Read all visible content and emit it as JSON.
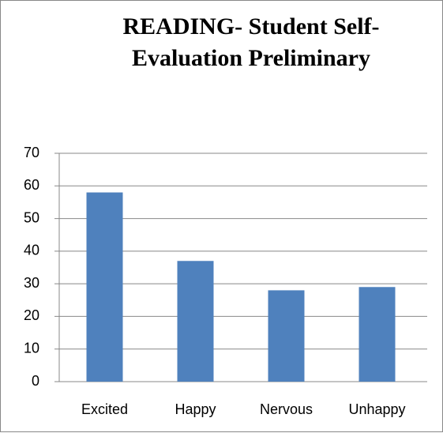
{
  "chart_data": {
    "type": "bar",
    "title": "READING- Student Self-Evaluation Preliminary",
    "categories": [
      "Excited",
      "Happy",
      "Nervous",
      "Unhappy"
    ],
    "values": [
      58,
      37,
      28,
      29
    ],
    "color": "#4f81bd",
    "ylim": [
      0,
      70
    ],
    "yticks": [
      0,
      10,
      20,
      30,
      40,
      50,
      60,
      70
    ],
    "grid": true
  }
}
